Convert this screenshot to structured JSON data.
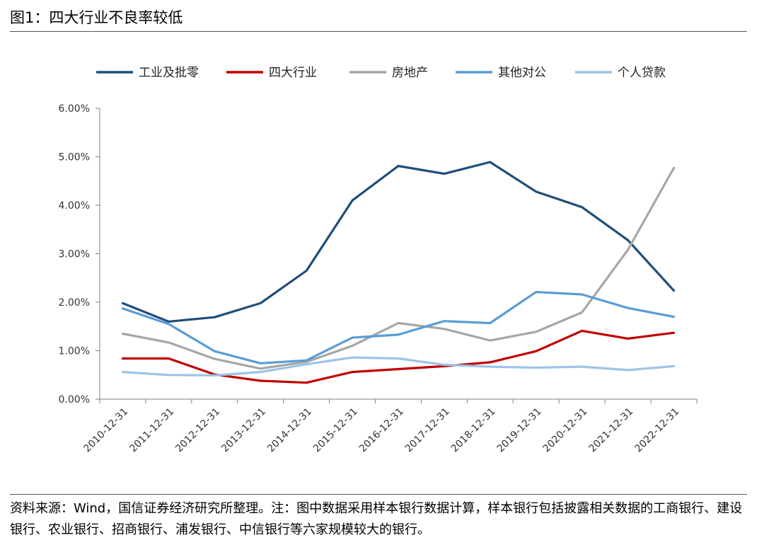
{
  "figure": {
    "title": "图1：四大行业不良率较低"
  },
  "source_note": "资料来源：Wind，国信证券经济研究所整理。注：图中数据采用样本银行数据计算，样本银行包括披露相关数据的工商银行、建设银行、农业银行、招商银行、浦发银行、中信银行等六家规模较大的银行。",
  "chart_data": {
    "type": "line",
    "title": "",
    "xlabel": "",
    "ylabel": "",
    "categories": [
      "2010-12-31",
      "2011-12-31",
      "2012-12-31",
      "2013-12-31",
      "2014-12-31",
      "2015-12-31",
      "2016-12-31",
      "2017-12-31",
      "2018-12-31",
      "2019-12-31",
      "2020-12-31",
      "2021-12-31",
      "2022-12-31"
    ],
    "y_ticks": [
      "0.00%",
      "1.00%",
      "2.00%",
      "3.00%",
      "4.00%",
      "5.00%",
      "6.00%"
    ],
    "ylim": [
      0,
      6
    ],
    "y_unit": "%",
    "grid": false,
    "legend_position": "top",
    "series": [
      {
        "name": "工业及批零",
        "color": "#1f4e79",
        "values": [
          1.98,
          1.6,
          1.69,
          1.98,
          2.65,
          4.1,
          4.81,
          4.65,
          4.89,
          4.28,
          3.96,
          3.28,
          2.24
        ]
      },
      {
        "name": "四大行业",
        "color": "#c00000",
        "values": [
          0.84,
          0.84,
          0.51,
          0.38,
          0.34,
          0.56,
          0.62,
          0.68,
          0.76,
          0.99,
          1.41,
          1.25,
          1.37
        ]
      },
      {
        "name": "房地产",
        "color": "#a6a6a6",
        "values": [
          1.35,
          1.17,
          0.83,
          0.63,
          0.77,
          1.1,
          1.57,
          1.45,
          1.21,
          1.39,
          1.79,
          3.08,
          4.77
        ]
      },
      {
        "name": "其他对公",
        "color": "#5b9bd5",
        "values": [
          1.87,
          1.55,
          0.99,
          0.74,
          0.8,
          1.27,
          1.33,
          1.61,
          1.57,
          2.21,
          2.16,
          1.88,
          1.7
        ]
      },
      {
        "name": "个人贷款",
        "color": "#9dc3e6",
        "values": [
          0.56,
          0.5,
          0.49,
          0.56,
          0.72,
          0.86,
          0.84,
          0.71,
          0.67,
          0.65,
          0.67,
          0.6,
          0.68
        ]
      }
    ]
  }
}
